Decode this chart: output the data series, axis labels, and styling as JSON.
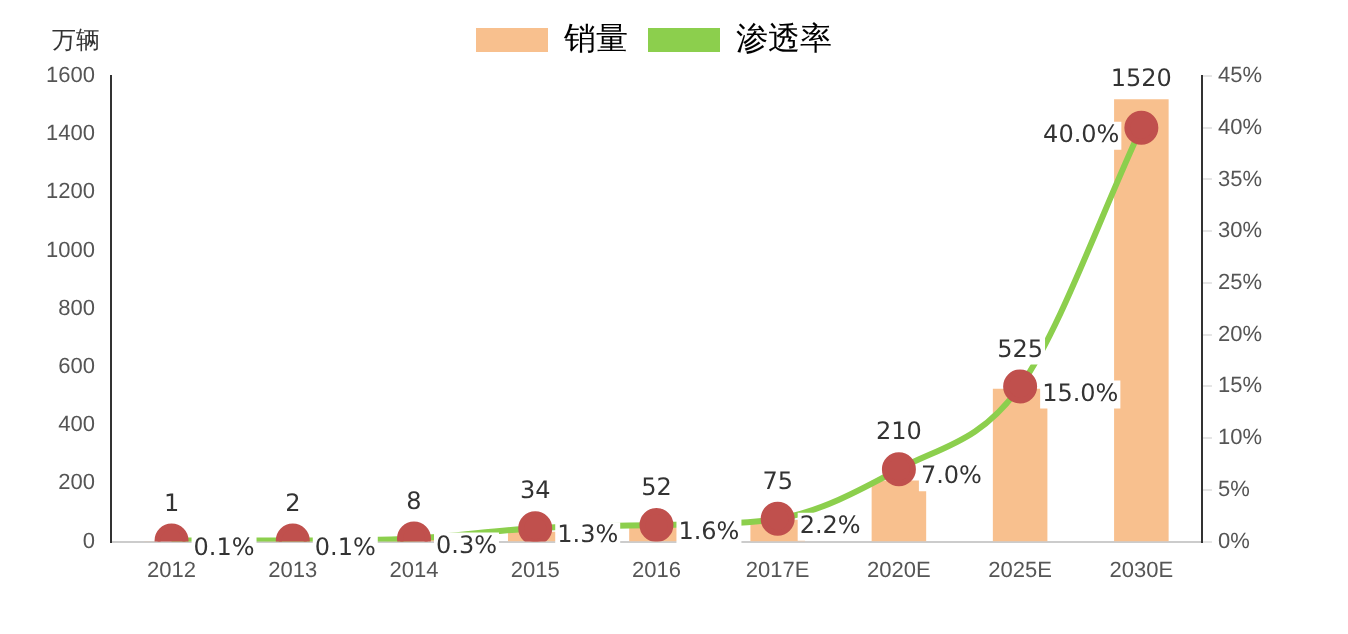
{
  "chart_data": {
    "type": "bar",
    "ylabel": "万辆",
    "categories": [
      "2012",
      "2013",
      "2014",
      "2015",
      "2016",
      "2017E",
      "2020E",
      "2025E",
      "2030E"
    ],
    "series": [
      {
        "name": "销量",
        "color": "#f8c08e",
        "values": [
          1,
          2,
          8,
          34,
          52,
          75,
          210,
          525,
          1520
        ],
        "value_labels": [
          "1",
          "2",
          "8",
          "34",
          "52",
          "75",
          "210",
          "525",
          "1520"
        ]
      },
      {
        "name": "渗透率",
        "type": "line",
        "axis": "y2",
        "color": "#8ccf4d",
        "values": [
          0.1,
          0.1,
          0.3,
          1.3,
          1.6,
          2.2,
          7.0,
          15.0,
          40.0
        ],
        "value_labels": [
          "0.1%",
          "0.1%",
          "0.3%",
          "1.3%",
          "1.6%",
          "2.2%",
          "7.0%",
          "15.0%",
          "40.0%"
        ]
      }
    ],
    "ylim": [
      0,
      1600
    ],
    "yticks": [
      0,
      200,
      400,
      600,
      800,
      1000,
      1200,
      1400,
      1600
    ],
    "y2lim": [
      0,
      45
    ],
    "y2ticks": [
      {
        "value": 0,
        "label": "0%"
      },
      {
        "value": 5,
        "label": "5%"
      },
      {
        "value": 10,
        "label": "10%"
      },
      {
        "value": 15,
        "label": "15%"
      },
      {
        "value": 20,
        "label": "20%"
      },
      {
        "value": 25,
        "label": "25%"
      },
      {
        "value": 30,
        "label": "30%"
      },
      {
        "value": 35,
        "label": "35%"
      },
      {
        "value": 40,
        "label": "40%"
      },
      {
        "value": 45,
        "label": "45%"
      }
    ],
    "grid": false,
    "legend": "top",
    "marker": "circle",
    "line_style": "solid"
  }
}
